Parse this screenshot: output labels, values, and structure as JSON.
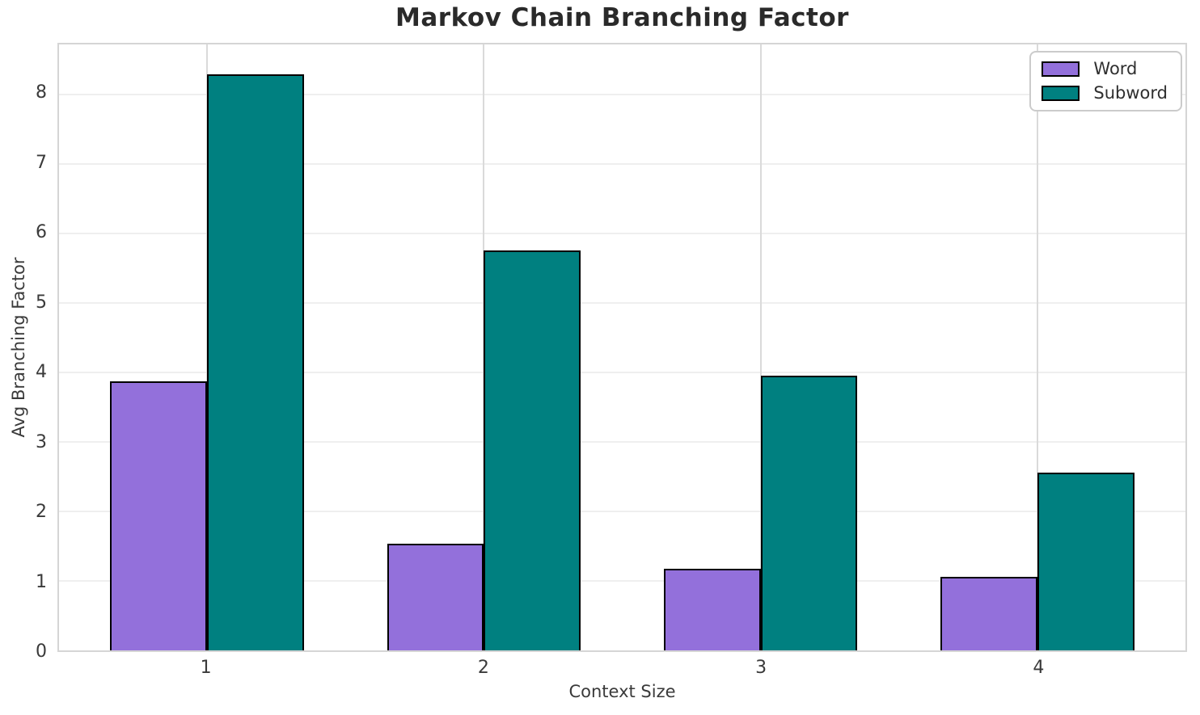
{
  "chart_data": {
    "type": "bar",
    "title": "Markov Chain Branching Factor",
    "xlabel": "Context Size",
    "ylabel": "Avg Branching Factor",
    "categories": [
      "1",
      "2",
      "3",
      "4"
    ],
    "series": [
      {
        "name": "Word",
        "color": "#9370DB",
        "values": [
          3.87,
          1.53,
          1.17,
          1.06
        ]
      },
      {
        "name": "Subword",
        "color": "#008080",
        "values": [
          8.29,
          5.76,
          3.95,
          2.56
        ]
      }
    ],
    "ylim": [
      0,
      8.72
    ],
    "yticks": [
      0,
      1,
      2,
      3,
      4,
      5,
      6,
      7,
      8
    ],
    "xlim": [
      0.465,
      4.535
    ],
    "bar_width_units": 0.35,
    "grid": true,
    "legend_position": "upper right",
    "bar_edge_color": "#000000",
    "colors": {
      "word": "#9370DB",
      "subword": "#008080",
      "grid_horizontal": "#efefef",
      "grid_vertical": "#dadada",
      "spine": "#d5d5d5",
      "title_text": "#2a2a2a",
      "tick_text": "#3a3a3a"
    }
  },
  "legend": {
    "items": [
      {
        "label": "Word",
        "color": "#9370DB"
      },
      {
        "label": "Subword",
        "color": "#008080"
      }
    ]
  }
}
